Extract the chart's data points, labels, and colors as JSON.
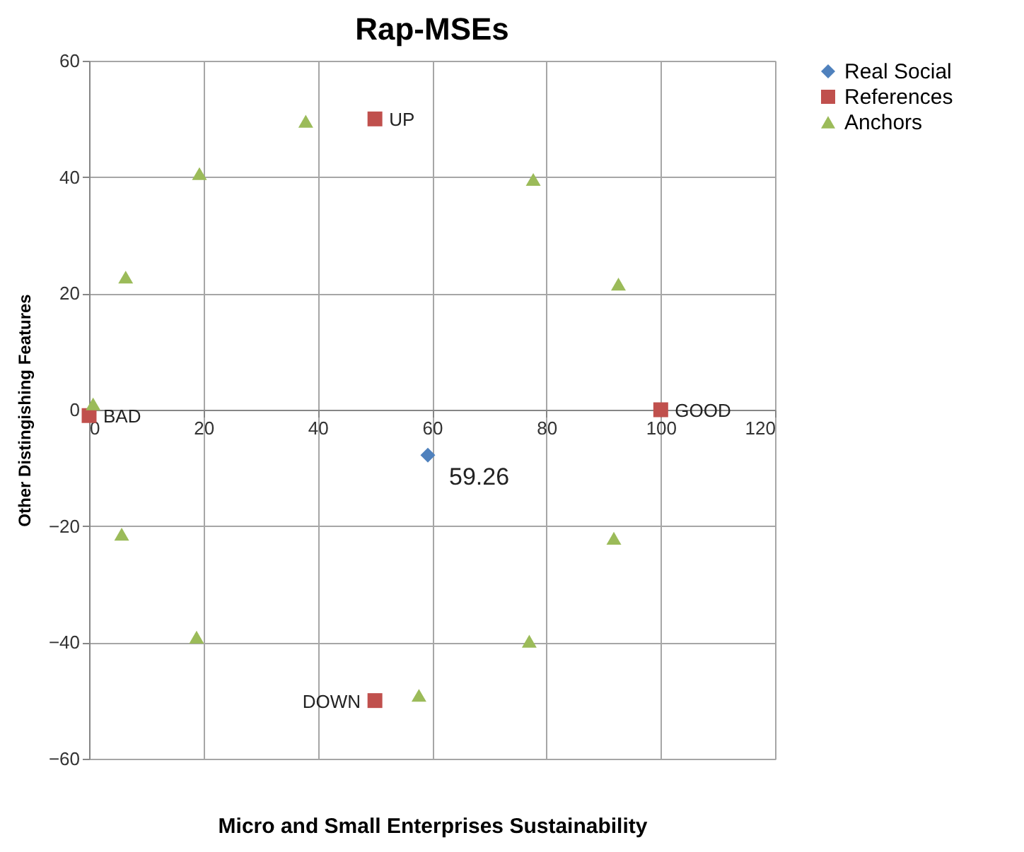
{
  "chart_data": {
    "type": "scatter",
    "title": "Rap-MSEs",
    "xlabel": "Micro and Small Enterprises Sustainability",
    "ylabel": "Other Distingishing Features",
    "xlim": [
      0,
      120
    ],
    "xticks": [
      0,
      20,
      40,
      60,
      80,
      100,
      120
    ],
    "ylim": [
      -60,
      60
    ],
    "yticks": [
      -60,
      -40,
      -20,
      0,
      20,
      40,
      60
    ],
    "grid": true,
    "legend": "right",
    "annotations": [
      {
        "text": "59.26",
        "x": 59.26,
        "y": -7.8
      }
    ],
    "series": [
      {
        "name": "Real Social",
        "color": "#4f81bd",
        "marker": "diamond",
        "x": [
          59.26
        ],
        "values": [
          -7.8
        ]
      },
      {
        "name": "References",
        "color": "#c0504d",
        "marker": "square",
        "x": [
          0,
          50,
          100,
          50
        ],
        "values": [
          -1,
          50,
          0,
          -50
        ],
        "value_labels": [
          "BAD",
          "UP",
          "GOOD",
          "DOWN"
        ]
      },
      {
        "name": "Anchors",
        "color": "#9bbb59",
        "marker": "triangle",
        "x": [
          0.7,
          6.4,
          19.3,
          37.9,
          77.7,
          92.6,
          5.7,
          18.8,
          57.7,
          77,
          91.8
        ],
        "values": [
          1,
          22.8,
          40.6,
          49.6,
          39.6,
          21.6,
          -21.4,
          -39.1,
          -49.1,
          -39.8,
          -22.1
        ]
      }
    ]
  }
}
